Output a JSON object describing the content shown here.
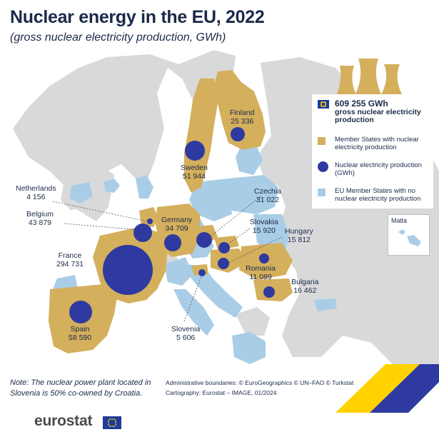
{
  "title": "Nuclear energy in the EU, 2022",
  "subtitle": "(gross nuclear electricity production, GWh)",
  "legend": {
    "total_value": "609 255 GWh",
    "total_caption": "gross nuclear electricity production",
    "member_with_nuclear": "Member States with nuclear electricity production",
    "bubble": "Nuclear electricity production (GWh)",
    "member_without_nuclear": "EU Member States with no nuclear electricity production"
  },
  "colors": {
    "nuclear_country": "#d4af5c",
    "non_nuclear_eu": "#a9cde6",
    "non_eu_land": "#d9d9d9",
    "sea": "#ffffff",
    "bubble": "#2e3a9f",
    "title": "#1b2a4a"
  },
  "countries": [
    {
      "name": "Finland",
      "value": "25 336"
    },
    {
      "name": "Sweden",
      "value": "51 944"
    },
    {
      "name": "Czechia",
      "value": "31 022"
    },
    {
      "name": "Netherlands",
      "value": "4 156"
    },
    {
      "name": "Belgium",
      "value": "43 879"
    },
    {
      "name": "Germany",
      "value": "34 709"
    },
    {
      "name": "Slovakia",
      "value": "15 920"
    },
    {
      "name": "Hungary",
      "value": "15 812"
    },
    {
      "name": "France",
      "value": "294 731"
    },
    {
      "name": "Romania",
      "value": "11 089"
    },
    {
      "name": "Bulgaria",
      "value": "16 462"
    },
    {
      "name": "Spain",
      "value": "58 590"
    },
    {
      "name": "Slovenia",
      "value": "5 606"
    }
  ],
  "inset": {
    "label": "Malta"
  },
  "note": "Note: The nuclear power plant located in Slovenia is 50% co-owned by Croatia.",
  "credits": {
    "boundaries": "Administrative boundaries: © EuroGeographics © UN–FAO © Turkstat",
    "cartography": "Cartography: Eurostat – IMAGE, 01/2024"
  },
  "brand": "eurostat",
  "icons": [
    "cooling-towers-icon",
    "eu-flag-icon"
  ]
}
